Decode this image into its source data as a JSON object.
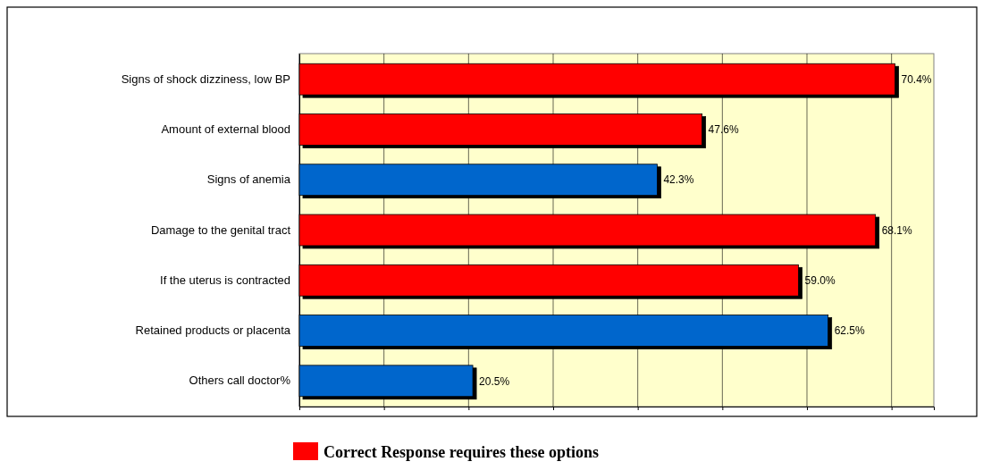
{
  "chart_data": {
    "type": "bar",
    "orientation": "horizontal",
    "categories": [
      "Signs of shock dizziness, low  BP",
      "Amount of external blood",
      "Signs of anemia",
      "Damage to the genital tract",
      "If the uterus is contracted",
      "Retained products or  placenta",
      "Others call doctor%"
    ],
    "series": [
      {
        "name": "Correct Response requires these options",
        "color": "#ff0000",
        "values": [
          70.4,
          47.6,
          null,
          68.1,
          59.0,
          null,
          null
        ],
        "value_labels": [
          "70.4%",
          "47.6%",
          null,
          "68.1%",
          "59.0%",
          null,
          null
        ]
      },
      {
        "color": "#0066cc",
        "values": [
          null,
          null,
          42.3,
          null,
          null,
          62.5,
          20.5
        ],
        "value_labels": [
          null,
          null,
          "42.3%",
          null,
          null,
          "62.5%",
          "20.5%"
        ]
      }
    ],
    "xlim": [
      0,
      75
    ],
    "xticks": [
      {
        "value": 0,
        "label": null
      },
      {
        "value": 10,
        "label": null
      },
      {
        "value": 20,
        "label": null
      },
      {
        "value": 30,
        "label": null
      },
      {
        "value": 40,
        "label": null
      },
      {
        "value": 50,
        "label": null
      },
      {
        "value": 60,
        "label": null
      },
      {
        "value": 70,
        "label": null
      }
    ],
    "tick_labels": "y",
    "grid": "x",
    "legend": "bottom"
  }
}
